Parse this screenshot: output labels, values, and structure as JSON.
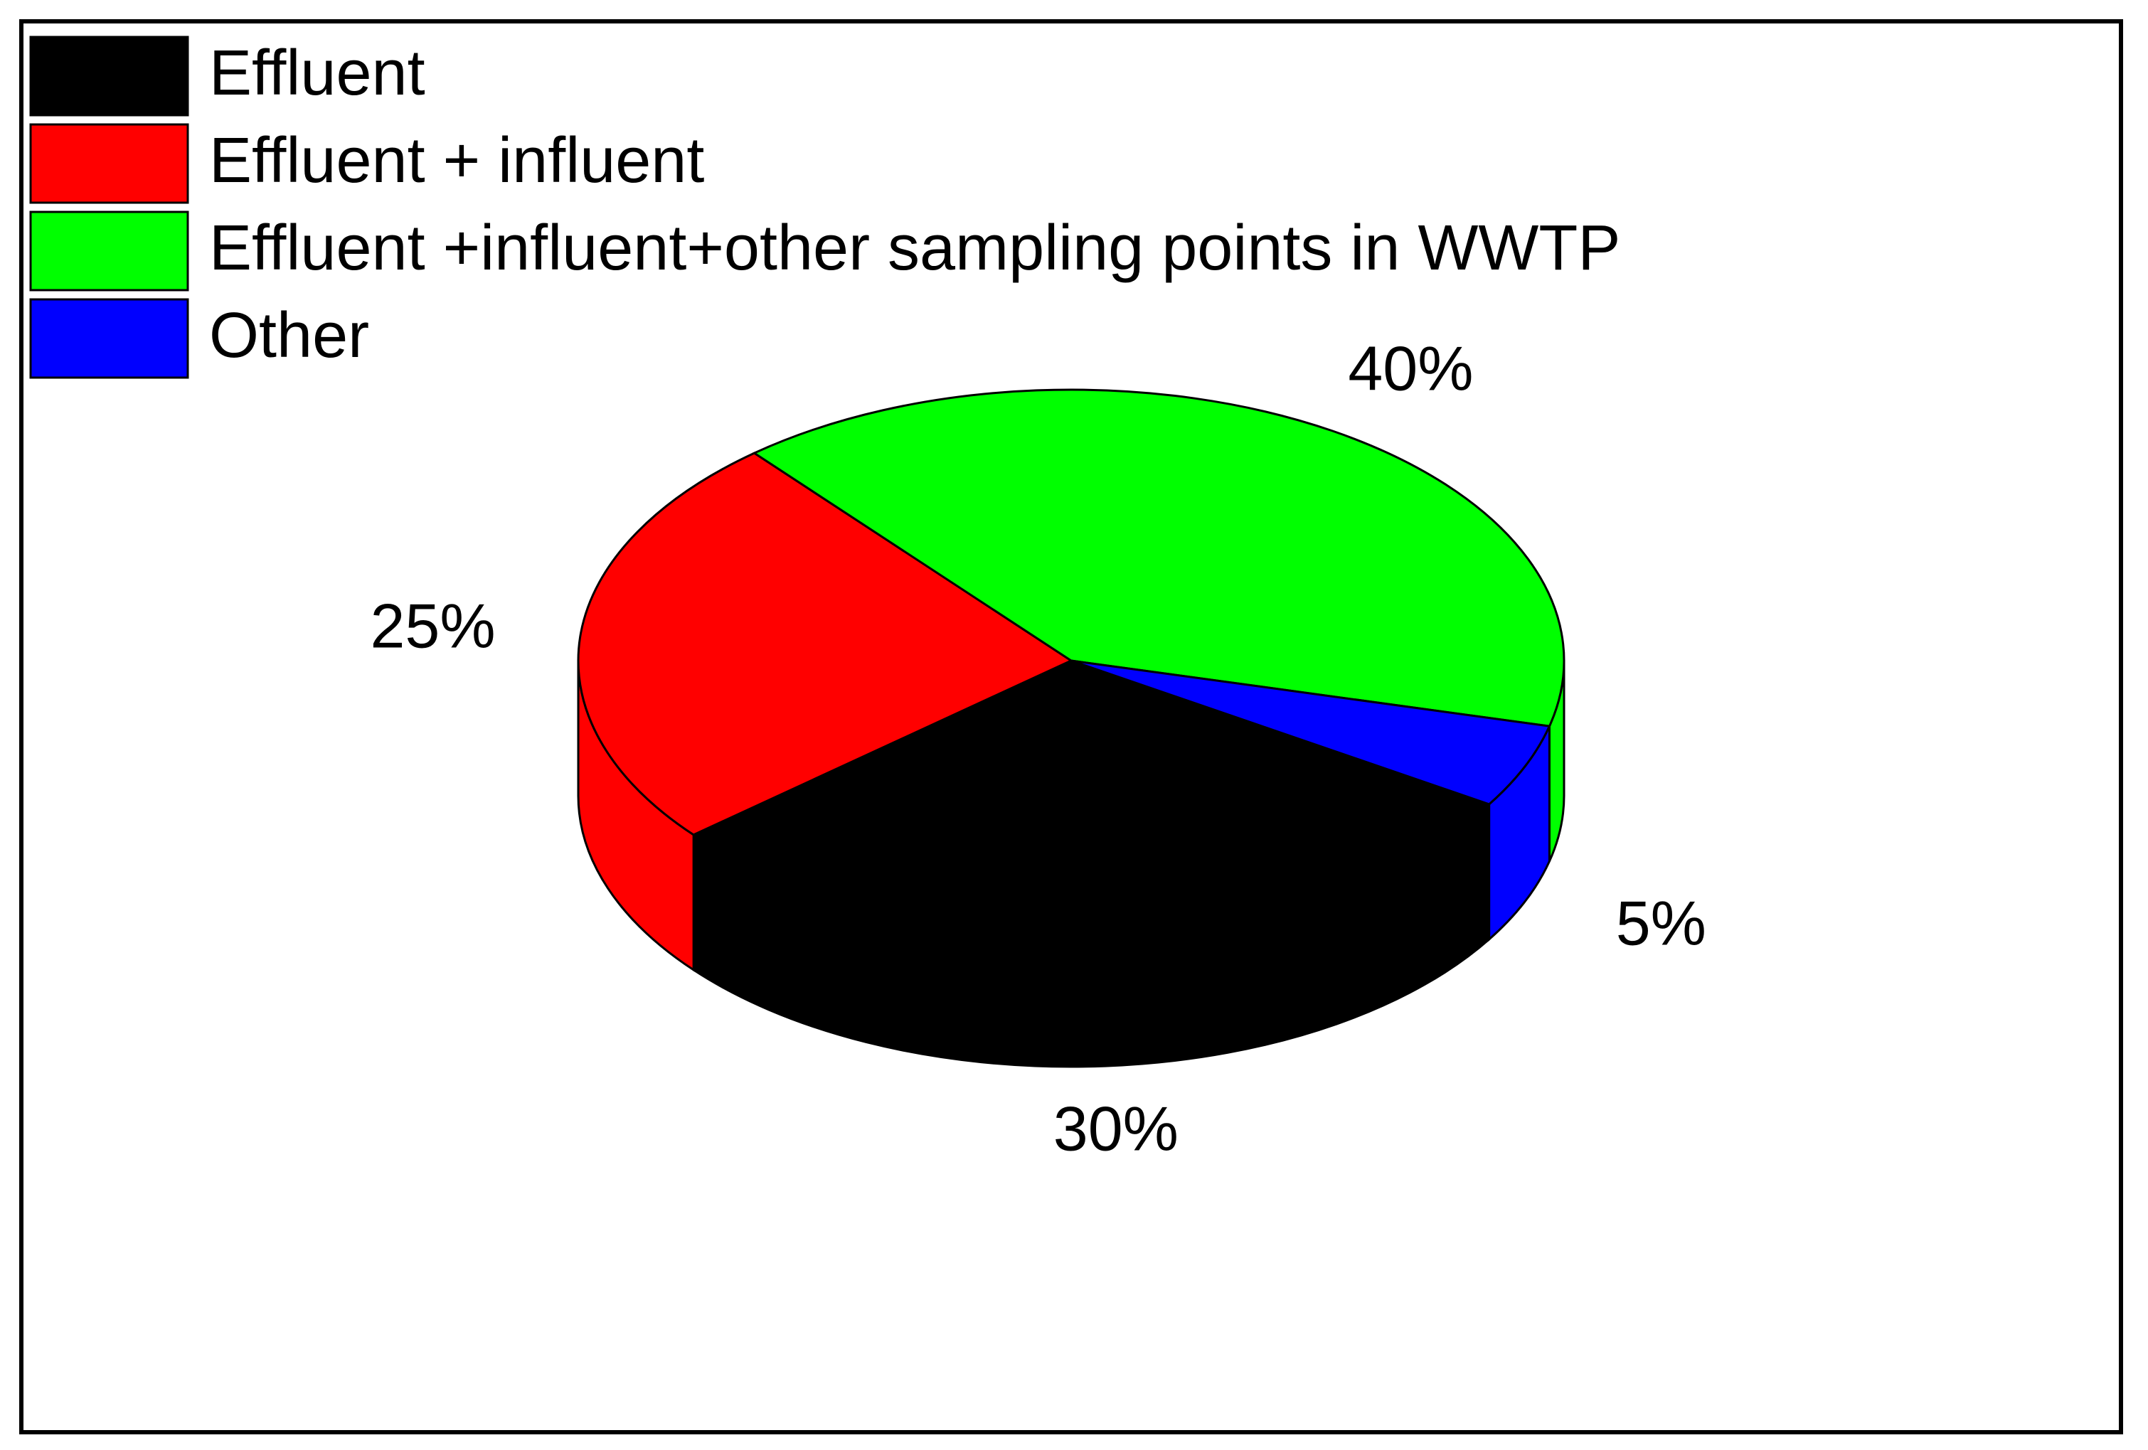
{
  "chart_data": {
    "type": "pie",
    "categories": [
      "Effluent",
      "Effluent + influent",
      "Effluent +influent+other sampling points in WWTP",
      "Other"
    ],
    "values": [
      30,
      25,
      40,
      5
    ],
    "value_labels": [
      "30%",
      "25%",
      "40%",
      "5%"
    ],
    "colors": [
      "#000000",
      "#ff0000",
      "#00ff00",
      "#0000ff"
    ],
    "legend": "upper left"
  }
}
